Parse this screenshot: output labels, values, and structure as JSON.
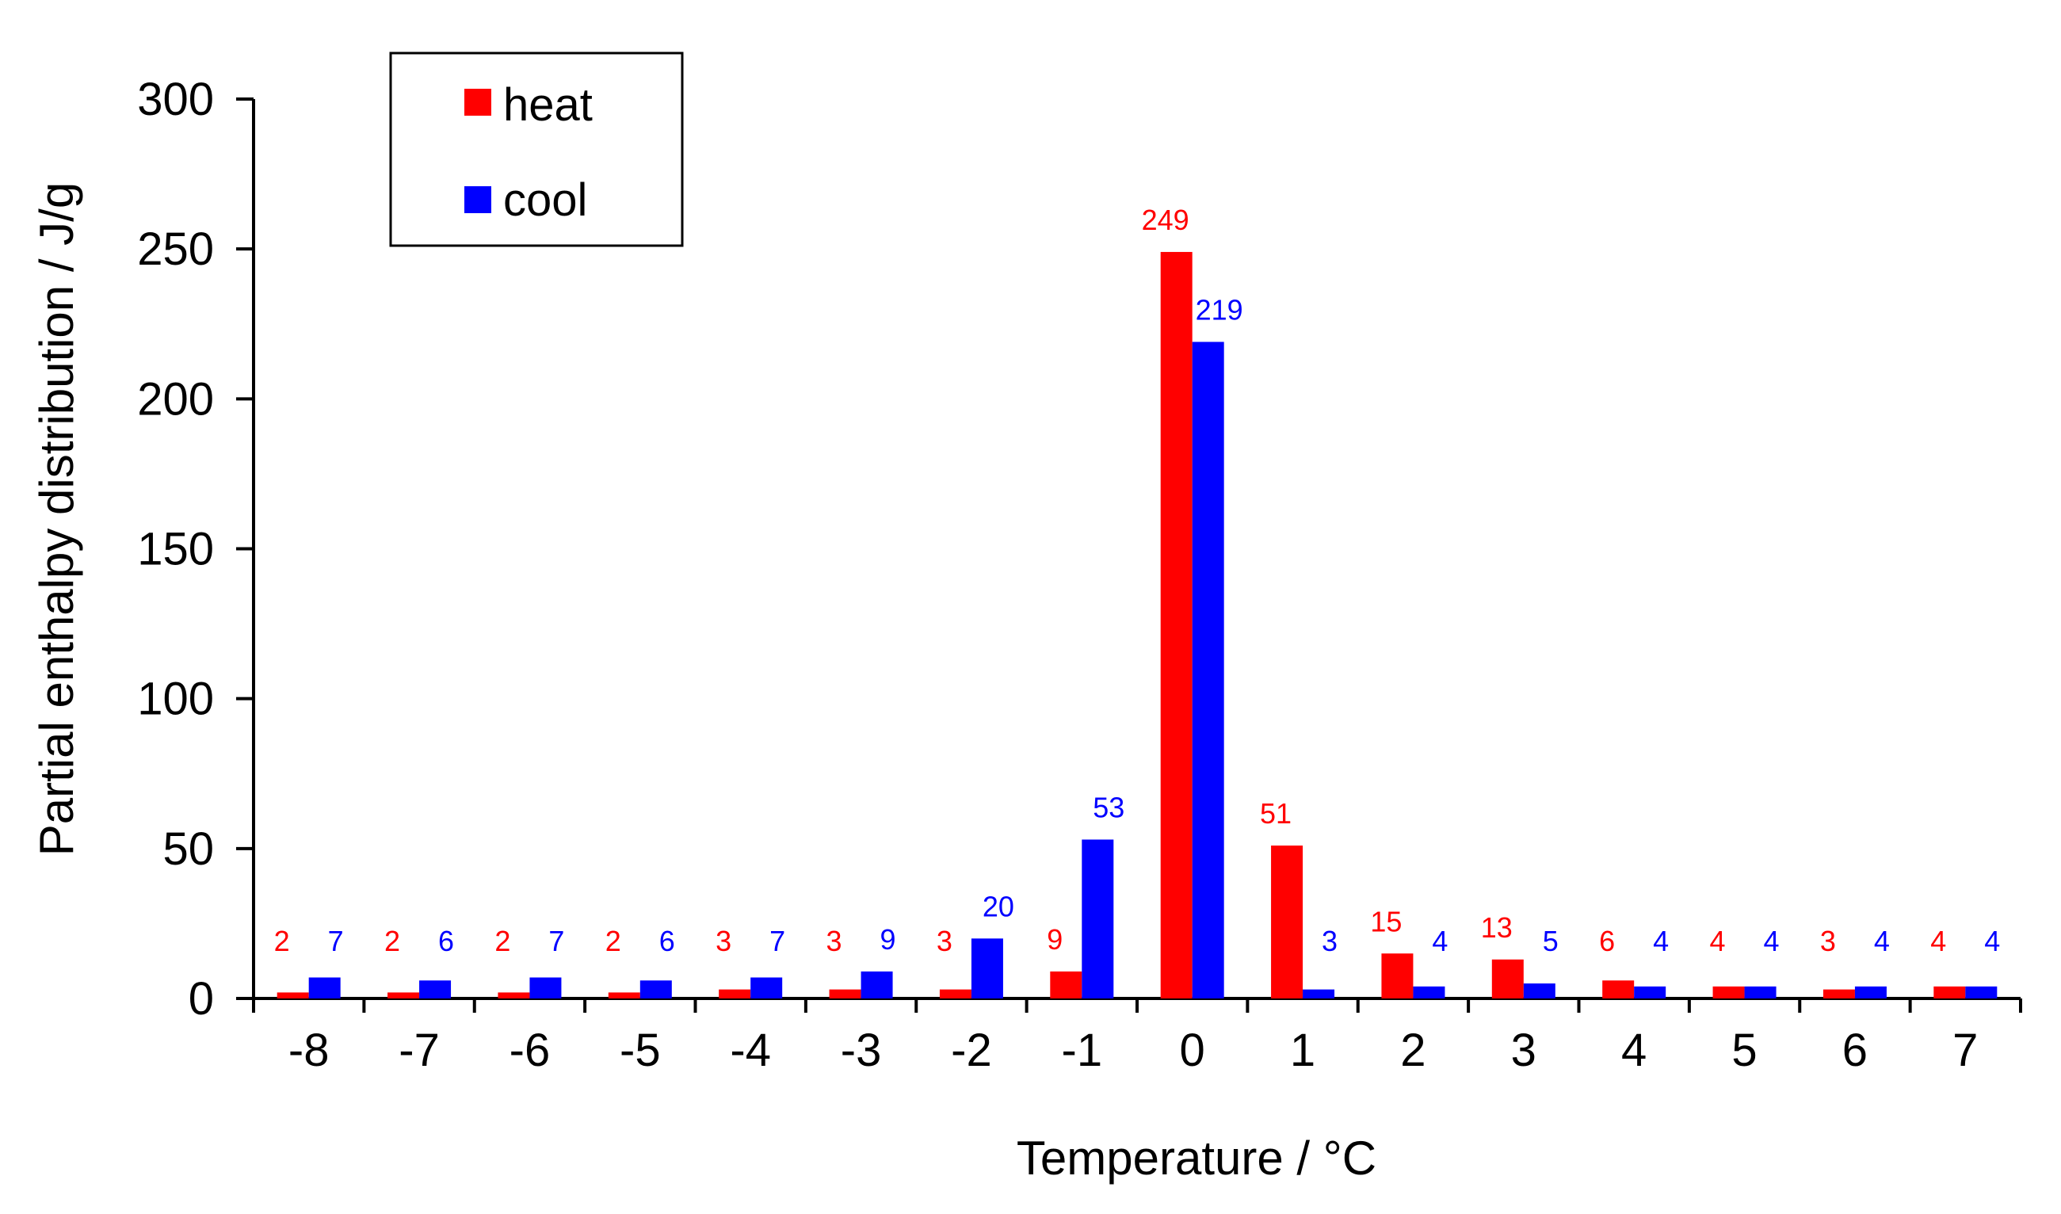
{
  "chart_data": {
    "type": "bar",
    "title": "",
    "xlabel": "Temperature / °C",
    "ylabel": "Partial enthalpy distribution / J/g",
    "categories": [
      "-8",
      "-7",
      "-6",
      "-5",
      "-4",
      "-3",
      "-2",
      "-1",
      "0",
      "1",
      "2",
      "3",
      "4",
      "5",
      "6",
      "7"
    ],
    "series": [
      {
        "name": "heat",
        "color": "#ff0000",
        "values": [
          2,
          2,
          2,
          2,
          3,
          3,
          3,
          9,
          249,
          51,
          15,
          13,
          6,
          4,
          3,
          4
        ]
      },
      {
        "name": "cool",
        "color": "#0000ff",
        "values": [
          7,
          6,
          7,
          6,
          7,
          9,
          20,
          53,
          219,
          3,
          4,
          5,
          4,
          4,
          4,
          4
        ]
      }
    ],
    "ylim": [
      0,
      300
    ],
    "yticks": [
      0,
      50,
      100,
      150,
      200,
      250,
      300
    ],
    "grid": false,
    "legend_position": "top-left"
  }
}
